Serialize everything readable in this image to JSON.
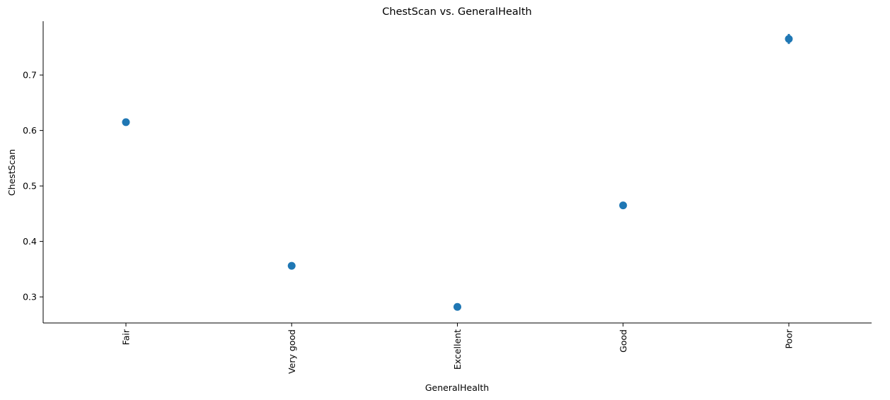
{
  "chart_data": {
    "type": "scatter",
    "title": "ChestScan vs. GeneralHealth",
    "xlabel": "GeneralHealth",
    "ylabel": "ChestScan",
    "categories": [
      "Fair",
      "Very good",
      "Excellent",
      "Good",
      "Poor"
    ],
    "values": [
      0.615,
      0.356,
      0.282,
      0.465,
      0.765
    ],
    "error_low": [
      0.609,
      0.353,
      0.279,
      0.462,
      0.756
    ],
    "error_high": [
      0.621,
      0.359,
      0.285,
      0.468,
      0.774
    ],
    "ylim": [
      0.253,
      0.797
    ],
    "yticks": [
      0.3,
      0.4,
      0.5,
      0.6,
      0.7
    ],
    "ytick_labels": [
      "0.3",
      "0.4",
      "0.5",
      "0.6",
      "0.7"
    ],
    "grid": false,
    "color": "#1f77b4"
  }
}
